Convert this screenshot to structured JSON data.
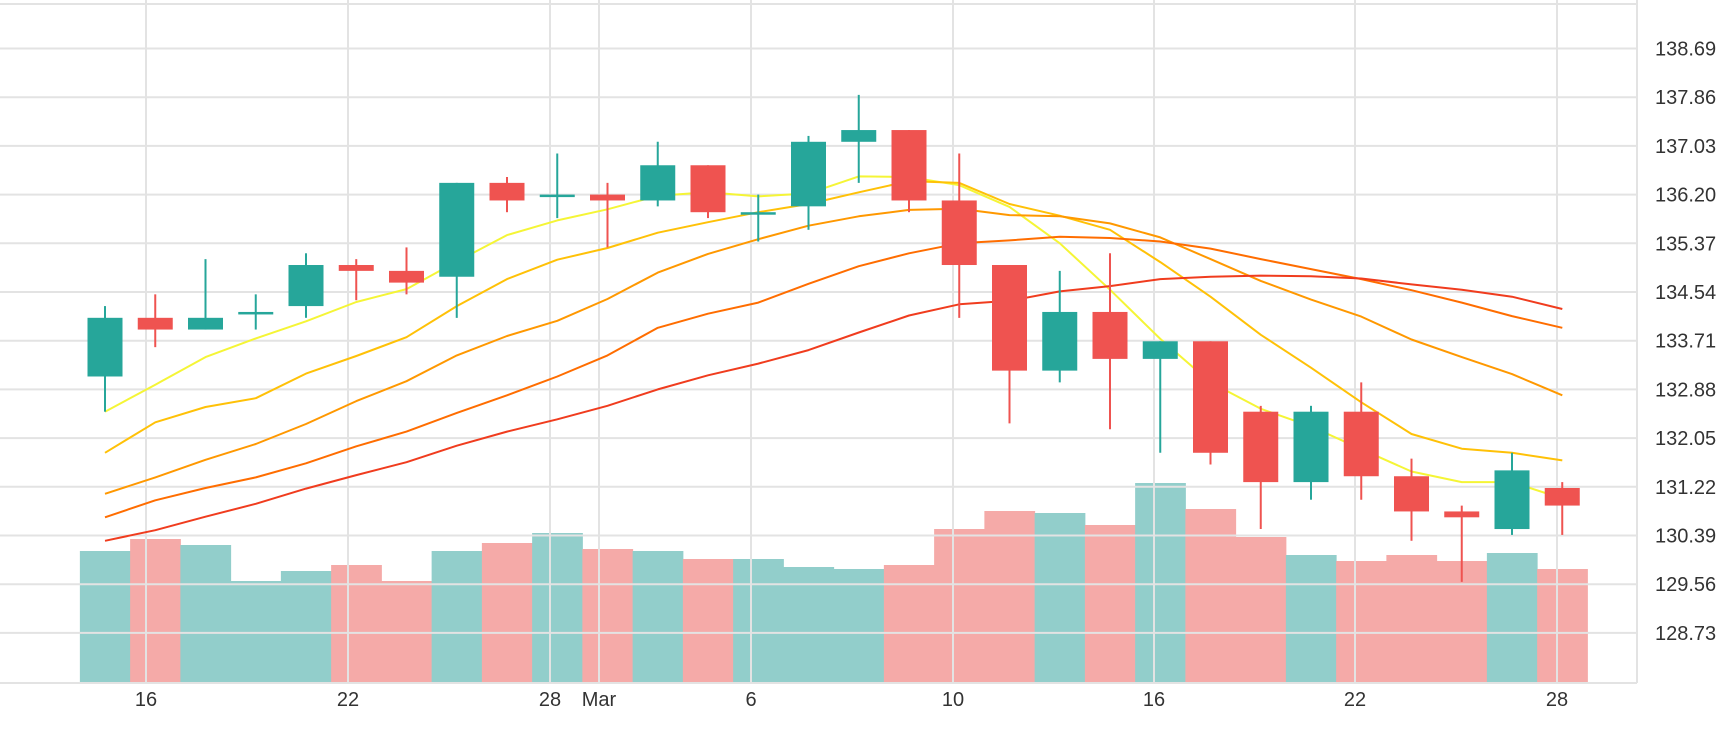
{
  "chart_data": {
    "type": "candlestick",
    "x_tick_labels": [
      "16",
      "22",
      "28",
      "Mar",
      "6",
      "10",
      "16",
      "22",
      "28"
    ],
    "y_tick_labels": [
      "138.69",
      "137.86",
      "137.03",
      "136.20",
      "135.37",
      "134.54",
      "133.71",
      "132.88",
      "132.05",
      "131.22",
      "130.39",
      "129.56",
      "128.73"
    ],
    "ylim": [
      127.9,
      139.5
    ],
    "colors": {
      "up": "#26a69a",
      "down": "#ef5350",
      "volume_up": "#92cecb",
      "volume_down": "#f5aaa8",
      "grid": "#e3e3e3",
      "ma": [
        "#f5f536",
        "#ffc107",
        "#ff9800",
        "#ff6d00",
        "#f03c1e"
      ]
    },
    "candles": [
      {
        "date": "Feb 15",
        "open": 133.1,
        "high": 134.3,
        "low": 132.5,
        "close": 134.1,
        "volume_level": 0.66
      },
      {
        "date": "Feb 16",
        "open": 134.1,
        "high": 134.5,
        "low": 133.6,
        "close": 133.9,
        "volume_level": 0.72
      },
      {
        "date": "Feb 17",
        "open": 133.9,
        "high": 135.1,
        "low": 133.9,
        "close": 134.1,
        "volume_level": 0.69
      },
      {
        "date": "Feb 19",
        "open": 134.2,
        "high": 134.5,
        "low": 133.9,
        "close": 134.2,
        "volume_level": 0.51
      },
      {
        "date": "Feb 20",
        "open": 134.3,
        "high": 135.2,
        "low": 134.1,
        "close": 135.0,
        "volume_level": 0.56
      },
      {
        "date": "Feb 22",
        "open": 135.0,
        "high": 135.1,
        "low": 134.4,
        "close": 134.9,
        "volume_level": 0.59
      },
      {
        "date": "Feb 23",
        "open": 134.9,
        "high": 135.3,
        "low": 134.5,
        "close": 134.7,
        "volume_level": 0.51
      },
      {
        "date": "Feb 24",
        "open": 134.8,
        "high": 136.4,
        "low": 134.1,
        "close": 136.4,
        "volume_level": 0.66
      },
      {
        "date": "Feb 26",
        "open": 136.4,
        "high": 136.5,
        "low": 135.9,
        "close": 136.1,
        "volume_level": 0.7
      },
      {
        "date": "Feb 27",
        "open": 136.2,
        "high": 136.9,
        "low": 135.8,
        "close": 136.2,
        "volume_level": 0.75
      },
      {
        "date": "Mar 1",
        "open": 136.2,
        "high": 136.4,
        "low": 135.3,
        "close": 136.1,
        "volume_level": 0.67
      },
      {
        "date": "Mar 3",
        "open": 136.1,
        "high": 137.1,
        "low": 136.0,
        "close": 136.7,
        "volume_level": 0.66
      },
      {
        "date": "Mar 4",
        "open": 136.7,
        "high": 136.7,
        "low": 135.8,
        "close": 135.9,
        "volume_level": 0.62
      },
      {
        "date": "Mar 6",
        "open": 135.9,
        "high": 136.2,
        "low": 135.4,
        "close": 135.9,
        "volume_level": 0.62
      },
      {
        "date": "Mar 7",
        "open": 136.0,
        "high": 137.2,
        "low": 135.6,
        "close": 137.1,
        "volume_level": 0.58
      },
      {
        "date": "Mar 8",
        "open": 137.1,
        "high": 137.9,
        "low": 136.4,
        "close": 137.3,
        "volume_level": 0.57
      },
      {
        "date": "Mar 9",
        "open": 137.3,
        "high": 137.3,
        "low": 135.9,
        "close": 136.1,
        "volume_level": 0.59
      },
      {
        "date": "Mar 10",
        "open": 136.1,
        "high": 136.9,
        "low": 134.1,
        "close": 135.0,
        "volume_level": 0.77
      },
      {
        "date": "Mar 12",
        "open": 135.0,
        "high": 135.0,
        "low": 132.3,
        "close": 133.2,
        "volume_level": 0.86
      },
      {
        "date": "Mar 13",
        "open": 133.2,
        "high": 134.9,
        "low": 133.0,
        "close": 134.2,
        "volume_level": 0.85
      },
      {
        "date": "Mar 15",
        "open": 134.2,
        "high": 135.2,
        "low": 132.2,
        "close": 133.4,
        "volume_level": 0.79
      },
      {
        "date": "Mar 16",
        "open": 133.4,
        "high": 133.7,
        "low": 131.8,
        "close": 133.7,
        "volume_level": 1.0
      },
      {
        "date": "Mar 17",
        "open": 133.7,
        "high": 133.7,
        "low": 131.6,
        "close": 131.8,
        "volume_level": 0.87
      },
      {
        "date": "Mar 19",
        "open": 132.5,
        "high": 132.6,
        "low": 130.5,
        "close": 131.3,
        "volume_level": 0.73
      },
      {
        "date": "Mar 21",
        "open": 131.3,
        "high": 132.6,
        "low": 131.0,
        "close": 132.5,
        "volume_level": 0.64
      },
      {
        "date": "Mar 22",
        "open": 132.5,
        "high": 133.0,
        "low": 131.0,
        "close": 131.4,
        "volume_level": 0.61
      },
      {
        "date": "Mar 23",
        "open": 131.4,
        "high": 131.7,
        "low": 130.3,
        "close": 130.8,
        "volume_level": 0.64
      },
      {
        "date": "Mar 25",
        "open": 130.8,
        "high": 130.9,
        "low": 129.6,
        "close": 130.7,
        "volume_level": 0.61
      },
      {
        "date": "Mar 26",
        "open": 130.5,
        "high": 131.8,
        "low": 130.4,
        "close": 131.5,
        "volume_level": 0.65
      },
      {
        "date": "Mar 28",
        "open": 131.2,
        "high": 131.3,
        "low": 130.4,
        "close": 130.9,
        "volume_level": 0.57
      }
    ],
    "moving_averages": [
      {
        "values": [
          132.5,
          132.96,
          133.43,
          133.75,
          134.04,
          134.37,
          134.59,
          135.06,
          135.51,
          135.76,
          135.95,
          136.18,
          136.24,
          136.17,
          136.22,
          136.51,
          136.5,
          136.36,
          135.99,
          135.37,
          134.58,
          133.74,
          133.0,
          132.55,
          132.25,
          131.86,
          131.48,
          131.3,
          131.3,
          131.02
        ]
      },
      {
        "values": [
          131.8,
          132.32,
          132.58,
          132.73,
          133.15,
          133.45,
          133.77,
          134.3,
          134.76,
          135.09,
          135.29,
          135.55,
          135.73,
          135.9,
          136.04,
          136.24,
          136.43,
          136.4,
          136.04,
          135.84,
          135.6,
          135.05,
          134.46,
          133.81,
          133.25,
          132.66,
          132.12,
          131.87,
          131.8,
          131.67
        ]
      },
      {
        "values": [
          131.1,
          131.38,
          131.68,
          131.95,
          132.29,
          132.68,
          133.02,
          133.46,
          133.79,
          134.05,
          134.42,
          134.87,
          135.19,
          135.44,
          135.67,
          135.83,
          135.94,
          135.96,
          135.85,
          135.83,
          135.71,
          135.47,
          135.1,
          134.73,
          134.41,
          134.12,
          133.73,
          133.43,
          133.14,
          132.78
        ]
      },
      {
        "values": [
          130.7,
          130.99,
          131.2,
          131.38,
          131.62,
          131.91,
          132.16,
          132.48,
          132.78,
          133.1,
          133.46,
          133.93,
          134.17,
          134.36,
          134.68,
          134.98,
          135.2,
          135.37,
          135.42,
          135.48,
          135.46,
          135.4,
          135.28,
          135.1,
          134.93,
          134.76,
          134.57,
          134.36,
          134.13,
          133.93
        ]
      },
      {
        "values": [
          130.3,
          130.48,
          130.71,
          130.93,
          131.19,
          131.42,
          131.64,
          131.92,
          132.16,
          132.37,
          132.6,
          132.88,
          133.12,
          133.32,
          133.55,
          133.85,
          134.14,
          134.33,
          134.39,
          134.55,
          134.64,
          134.76,
          134.8,
          134.82,
          134.81,
          134.77,
          134.67,
          134.58,
          134.46,
          134.25
        ]
      }
    ]
  }
}
